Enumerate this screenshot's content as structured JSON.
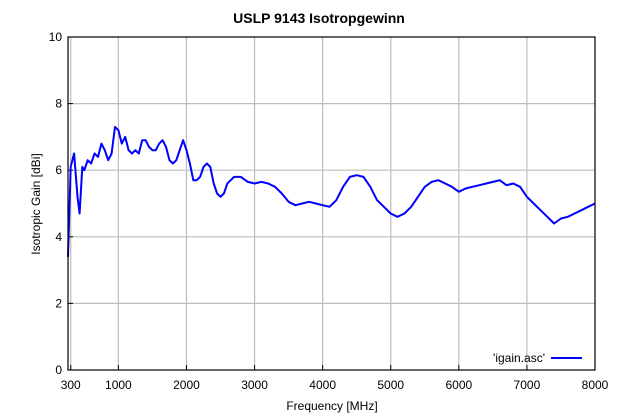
{
  "chart_data": {
    "type": "line",
    "title": "USLP 9143 Isotropgewinn",
    "xlabel": "Frequency [MHz]",
    "ylabel": "Isotropic Gain [dBi]",
    "xlim": [
      260,
      8000
    ],
    "ylim": [
      0,
      10
    ],
    "grid": true,
    "legend_position": "bottom-right",
    "xticks": [
      300,
      1000,
      2000,
      3000,
      4000,
      5000,
      6000,
      7000,
      8000
    ],
    "xtick_labels": [
      "300",
      "1000",
      "2000",
      "3000",
      "4000",
      "5000",
      "6000",
      "7000",
      "8000"
    ],
    "yticks": [
      0,
      2,
      4,
      6,
      8,
      10
    ],
    "ytick_labels": [
      "0",
      "2",
      "4",
      "6",
      "8",
      "10"
    ],
    "series": [
      {
        "name": "'igain.asc'",
        "color": "#0000ff",
        "x": [
          260,
          300,
          350,
          400,
          430,
          470,
          500,
          550,
          600,
          650,
          700,
          750,
          800,
          850,
          900,
          950,
          1000,
          1050,
          1100,
          1150,
          1200,
          1250,
          1300,
          1350,
          1400,
          1450,
          1500,
          1550,
          1600,
          1650,
          1700,
          1750,
          1800,
          1850,
          1900,
          1950,
          2000,
          2050,
          2100,
          2150,
          2200,
          2250,
          2300,
          2350,
          2400,
          2450,
          2500,
          2550,
          2600,
          2650,
          2700,
          2800,
          2900,
          3000,
          3100,
          3200,
          3300,
          3400,
          3500,
          3600,
          3700,
          3800,
          3900,
          4000,
          4100,
          4200,
          4300,
          4400,
          4500,
          4600,
          4700,
          4800,
          4900,
          5000,
          5100,
          5200,
          5300,
          5400,
          5500,
          5600,
          5700,
          5800,
          5900,
          6000,
          6100,
          6200,
          6300,
          6400,
          6500,
          6600,
          6700,
          6800,
          6900,
          7000,
          7100,
          7200,
          7300,
          7400,
          7500,
          7600,
          7700,
          7800,
          7900,
          8000
        ],
        "y": [
          3.4,
          6.1,
          6.5,
          5.2,
          4.7,
          6.1,
          6.0,
          6.3,
          6.2,
          6.5,
          6.4,
          6.8,
          6.6,
          6.3,
          6.5,
          7.3,
          7.2,
          6.8,
          7.0,
          6.6,
          6.5,
          6.6,
          6.5,
          6.9,
          6.9,
          6.7,
          6.6,
          6.6,
          6.8,
          6.9,
          6.7,
          6.3,
          6.2,
          6.3,
          6.6,
          6.9,
          6.6,
          6.2,
          5.7,
          5.7,
          5.8,
          6.1,
          6.2,
          6.1,
          5.6,
          5.3,
          5.2,
          5.3,
          5.6,
          5.7,
          5.8,
          5.8,
          5.65,
          5.6,
          5.65,
          5.6,
          5.5,
          5.3,
          5.05,
          4.95,
          5.0,
          5.05,
          5.0,
          4.95,
          4.9,
          5.1,
          5.5,
          5.8,
          5.85,
          5.8,
          5.5,
          5.1,
          4.9,
          4.7,
          4.6,
          4.7,
          4.9,
          5.2,
          5.5,
          5.65,
          5.7,
          5.6,
          5.5,
          5.35,
          5.45,
          5.5,
          5.55,
          5.6,
          5.65,
          5.7,
          5.55,
          5.6,
          5.5,
          5.2,
          5.0,
          4.8,
          4.6,
          4.4,
          4.55,
          4.6,
          4.7,
          4.8,
          4.9,
          5.0
        ]
      }
    ]
  }
}
